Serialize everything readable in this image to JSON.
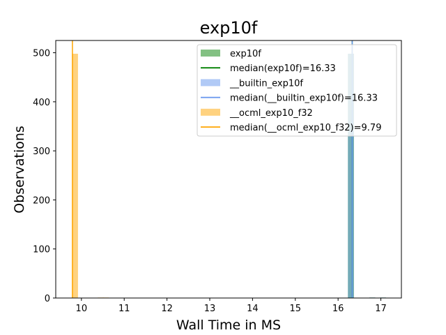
{
  "chart_data": {
    "type": "histogram",
    "title": "exp10f",
    "xlabel": "Wall Time in MS",
    "ylabel": "Observations",
    "xlim": [
      9.4,
      17.48
    ],
    "ylim": [
      0,
      525
    ],
    "xticks": [
      10,
      11,
      12,
      13,
      14,
      15,
      16,
      17
    ],
    "yticks": [
      0,
      100,
      200,
      300,
      400,
      500
    ],
    "bin_width": 0.14,
    "grid": false,
    "legend_position": "top-right",
    "series": [
      {
        "name": "exp10f",
        "color": "#4fa64f",
        "opacity": 0.7,
        "bins": [
          {
            "x": 16.23,
            "count": 498
          },
          {
            "x": 16.73,
            "count": 1
          },
          {
            "x": 16.98,
            "count": 1
          }
        ]
      },
      {
        "name": "__builtin_exp10f",
        "color": "#6495ed",
        "opacity": 0.5,
        "bins": [
          {
            "x": 16.23,
            "count": 498
          },
          {
            "x": 16.73,
            "count": 1
          },
          {
            "x": 16.98,
            "count": 1
          }
        ]
      },
      {
        "name": "__ocml_exp10_f32",
        "color": "#ffa500",
        "opacity": 0.5,
        "bins": [
          {
            "x": 9.78,
            "count": 498
          },
          {
            "x": 10.38,
            "count": 1
          },
          {
            "x": 10.5,
            "count": 1
          }
        ]
      }
    ],
    "medians": [
      {
        "label": "median(exp10f)=16.33",
        "value": 16.33,
        "color": "#008000"
      },
      {
        "label": "median(__builtin_exp10f)=16.33",
        "value": 16.33,
        "color": "#6495ed"
      },
      {
        "label": "median(__ocml_exp10_f32)=9.79",
        "value": 9.79,
        "color": "#ffa500"
      }
    ],
    "legend": [
      {
        "label": "exp10f",
        "kind": "patch",
        "color": "#4fa64f",
        "opacity": 0.7
      },
      {
        "label": "median(exp10f)=16.33",
        "kind": "line",
        "color": "#008000"
      },
      {
        "label": "__builtin_exp10f",
        "kind": "patch",
        "color": "#6495ed",
        "opacity": 0.5
      },
      {
        "label": "median(__builtin_exp10f)=16.33",
        "kind": "line",
        "color": "#6495ed"
      },
      {
        "label": "__ocml_exp10_f32",
        "kind": "patch",
        "color": "#ffa500",
        "opacity": 0.5
      },
      {
        "label": "median(__ocml_exp10_f32)=9.79",
        "kind": "line",
        "color": "#ffa500"
      }
    ]
  }
}
